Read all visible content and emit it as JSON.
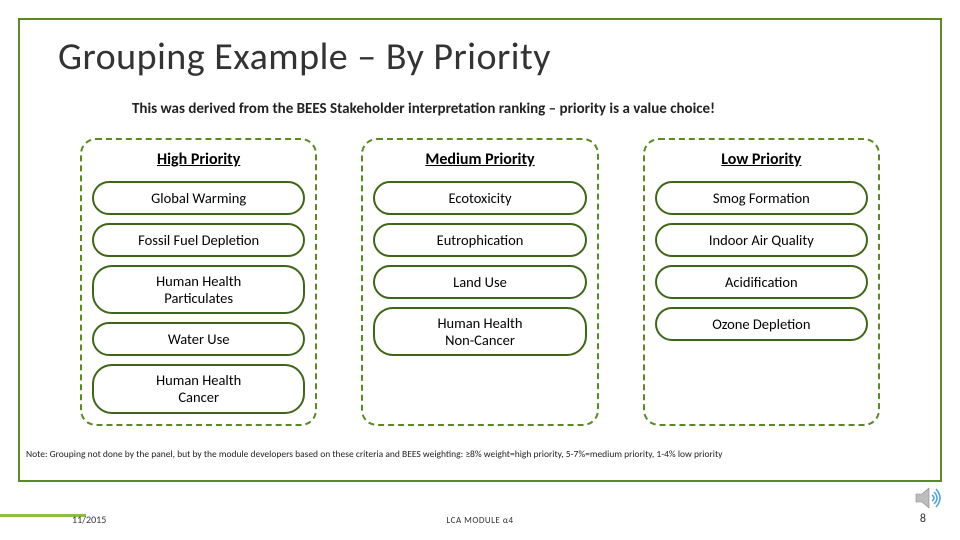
{
  "colors": {
    "accent": "#5b8a24",
    "pill_border": "#3f6618",
    "footer_bar": "#8bbf3f",
    "text": "#222222",
    "bg": "#ffffff"
  },
  "title": "Grouping Example – By Priority",
  "subtitle": "This was derived from the BEES Stakeholder interpretation ranking – priority is a value choice!",
  "columns": [
    {
      "header": "High Priority",
      "items": [
        "Global Warming",
        "Fossil Fuel Depletion",
        "Human Health\nParticulates",
        "Water Use",
        "Human Health\nCancer"
      ]
    },
    {
      "header": "Medium Priority",
      "items": [
        "Ecotoxicity",
        "Eutrophication",
        "Land Use",
        "Human Health\nNon-Cancer"
      ]
    },
    {
      "header": "Low Priority",
      "items": [
        "Smog Formation",
        "Indoor Air Quality",
        "Acidification",
        "Ozone Depletion"
      ]
    }
  ],
  "note": "Note: Grouping not done by the panel, but by the module developers based on these criteria and BEES weighting: ≥8% weight=high priority, 5-7%=medium priority, 1-4% low priority",
  "footer": {
    "date": "11/2015",
    "center": "LCA MODULE α4",
    "page": "8"
  }
}
